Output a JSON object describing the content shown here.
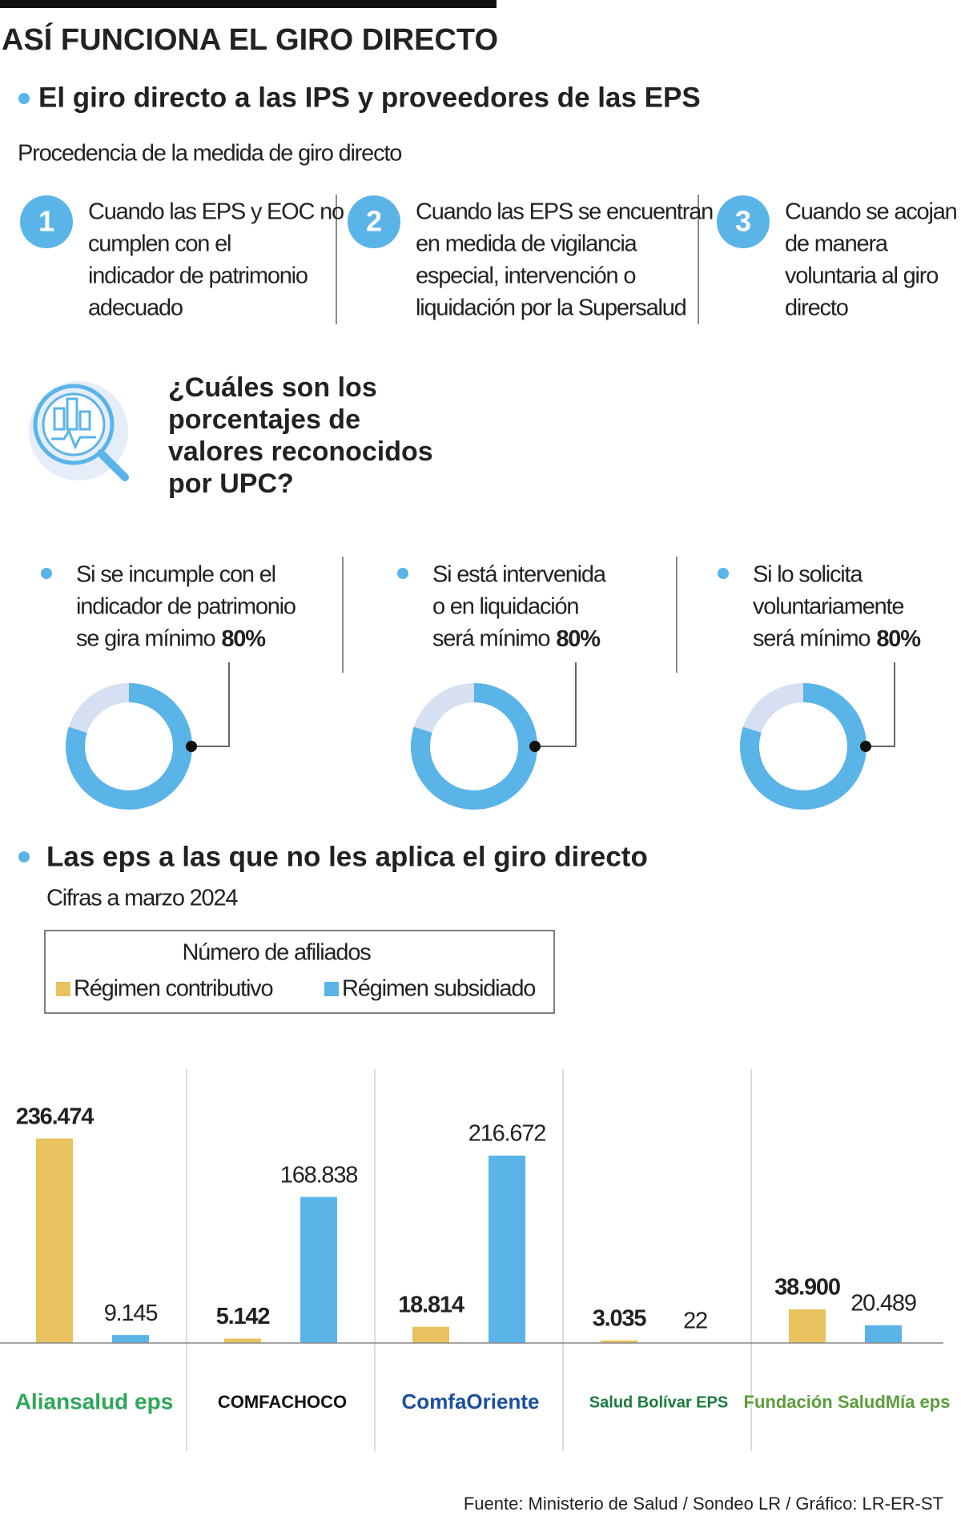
{
  "header": {
    "title": "ASÍ FUNCIONA EL GIRO DIRECTO",
    "section": "El giro directo a las IPS y proveedores de las EPS",
    "subtitle": "Procedencia de la medida de giro directo"
  },
  "steps": [
    {
      "number": "1",
      "lines": [
        "Cuando las EPS y EOC no",
        "cumplen con el",
        "indicador de patrimonio",
        "adecuado"
      ]
    },
    {
      "number": "2",
      "lines": [
        "Cuando las EPS se encuentran",
        "en medida de vigilancia",
        "especial, intervención o",
        "liquidación por la Supersalud"
      ]
    },
    {
      "number": "3",
      "lines": [
        "Cuando se acojan",
        "de manera",
        "voluntaria al giro",
        "directo"
      ]
    }
  ],
  "question": [
    "¿Cuáles son los",
    "porcentajes de",
    "valores reconocidos",
    "por UPC?"
  ],
  "chart_data": [
    {
      "type": "donut",
      "lines": [
        "Si se incumple con el",
        "indicador de patrimonio",
        "se gira mínimo"
      ],
      "values": [
        80
      ],
      "value_labels": [
        "80%"
      ],
      "color": "#5ab4e8"
    },
    {
      "type": "donut",
      "lines": [
        "Si está intervenida",
        "o en liquidación",
        "será mínimo"
      ],
      "values": [
        80
      ],
      "value_labels": [
        "80%"
      ],
      "color": "#5ab4e8"
    },
    {
      "type": "donut",
      "lines": [
        "Si lo solicita",
        "voluntariamente",
        "será mínimo"
      ],
      "values": [
        80
      ],
      "value_labels": [
        "80%"
      ],
      "color": "#5ab4e8"
    },
    {
      "type": "bar",
      "title": "Las eps a las que no les aplica el giro directo",
      "subtitle": "Cifras a marzo 2024",
      "legend_title": "Número de afiliados",
      "categories": [
        "Aliansalud eps",
        "COMFACHOCO",
        "ComfaOriente",
        "Salud Bolívar EPS",
        "Fundación SaludMía eps"
      ],
      "series": [
        {
          "name": "Régimen contributivo",
          "color": "#e8c25e",
          "values": [
            236474,
            5142,
            18814,
            3035,
            38900
          ],
          "value_labels": [
            "236.474",
            "5.142",
            "18.814",
            "3.035",
            "38.900"
          ]
        },
        {
          "name": "Régimen subsidiado",
          "color": "#5ab4e8",
          "values": [
            9145,
            168838,
            216672,
            22,
            20489
          ],
          "value_labels": [
            "9.145",
            "168.838",
            "216.672",
            "22",
            "20.489"
          ]
        }
      ],
      "ylim": [
        0,
        250000
      ]
    }
  ],
  "source": "Fuente: Ministerio de Salud / Sondeo LR / Gráfico: LR-ER-ST"
}
